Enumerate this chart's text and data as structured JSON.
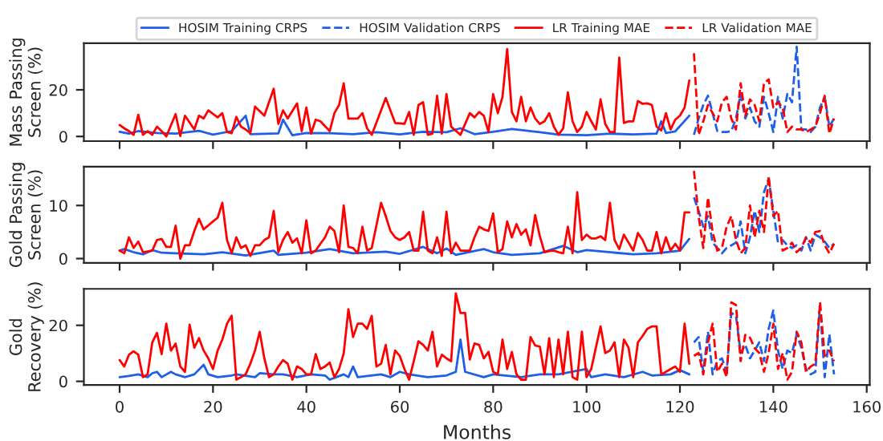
{
  "chart_data": [
    {
      "type": "line",
      "ylabel": "Mass Passing\nScreen (%)",
      "legend": "top",
      "tick_labels": "y",
      "grid": false,
      "xlim": [
        -7.65,
        160.65
      ],
      "xticks": [
        {
          "value": 0,
          "label": null
        },
        {
          "value": 20,
          "label": null
        },
        {
          "value": 40,
          "label": null
        },
        {
          "value": 60,
          "label": null
        },
        {
          "value": 80,
          "label": null
        },
        {
          "value": 100,
          "label": null
        },
        {
          "value": 120,
          "label": null
        },
        {
          "value": 140,
          "label": null
        },
        {
          "value": 160,
          "label": null
        }
      ],
      "ylim": [
        -2,
        40
      ],
      "yticks": [
        0,
        20
      ],
      "series": [
        {
          "name": "HOSIM Training CRPS",
          "color": "#1f5fe8",
          "line_style": "solid",
          "x": [
            0,
            2,
            4,
            8,
            12,
            17,
            20,
            24,
            27,
            28,
            34,
            35,
            37,
            40,
            45,
            50,
            55,
            60,
            65,
            70,
            73,
            76,
            80,
            84,
            90,
            94,
            100,
            105,
            110,
            115,
            116,
            117,
            119,
            122
          ],
          "values": [
            2,
            1.2,
            2.3,
            1.5,
            1.2,
            2.4,
            0.8,
            2.3,
            8.9,
            1,
            1.3,
            7.2,
            0.5,
            1.5,
            1.4,
            1,
            1.8,
            0.9,
            2,
            1.8,
            3.5,
            1,
            2,
            3.2,
            1.8,
            0.8,
            0.5,
            1.2,
            0.9,
            1.2,
            6.5,
            1.5,
            2.2,
            8.9
          ]
        },
        {
          "name": "HOSIM Validation CRPS",
          "color": "#1f5fe8",
          "line_style": "dashed",
          "x": [
            123,
            124,
            125,
            126,
            127,
            128,
            129,
            130,
            131,
            132,
            133,
            134,
            135,
            136,
            137,
            138,
            139,
            140,
            141,
            142,
            143,
            144,
            145,
            146,
            147,
            148,
            149,
            150,
            151,
            152,
            153
          ],
          "values": [
            0.7,
            7.7,
            13.5,
            17.5,
            10,
            2.3,
            1.9,
            1.9,
            2.3,
            7.7,
            18.2,
            7.7,
            12.4,
            6.5,
            4.2,
            17,
            10,
            1.9,
            17,
            7.7,
            18.2,
            14.7,
            38.5,
            3,
            3,
            1.9,
            4.2,
            12.4,
            17,
            4.2,
            7.7
          ]
        },
        {
          "name": "LR Training MAE",
          "color": "#ff0000",
          "line_style": "solid",
          "x": [
            0,
            1,
            2,
            3,
            4,
            5,
            6,
            7,
            8,
            9,
            10,
            12,
            13,
            14,
            16,
            17,
            18,
            19,
            21,
            22,
            23,
            24,
            25,
            26,
            27,
            28,
            29,
            31,
            33,
            34,
            35,
            36,
            38,
            39,
            40,
            41,
            42,
            43,
            45,
            46,
            47,
            48,
            49,
            51,
            52,
            53,
            54,
            57,
            59,
            61,
            62,
            63,
            64,
            65,
            66,
            67,
            68,
            69,
            70,
            71,
            73,
            74,
            75,
            76,
            77,
            78,
            79,
            80,
            81,
            82,
            83,
            84,
            85,
            86,
            87,
            88,
            89,
            90,
            91,
            92,
            93,
            94,
            95,
            96,
            97,
            98,
            99,
            100,
            101,
            102,
            103,
            104,
            105,
            106,
            107,
            108,
            109,
            110,
            111,
            112,
            113,
            114,
            115,
            116,
            117,
            118,
            119,
            120,
            121,
            122
          ],
          "values": [
            4.9,
            3.5,
            2.3,
            0.7,
            9.3,
            0.7,
            2.3,
            0.7,
            4.2,
            2.3,
            0,
            9.6,
            0.2,
            8.9,
            3,
            8.9,
            7.7,
            11.2,
            8.2,
            10,
            1.9,
            1.4,
            8.4,
            4.2,
            3,
            1.4,
            12.8,
            8.9,
            20.5,
            5.4,
            11.2,
            7.7,
            14.2,
            2.3,
            12.4,
            1.2,
            7.2,
            6.5,
            2.3,
            10,
            13.5,
            22.8,
            7.7,
            7.7,
            10,
            3.5,
            0.7,
            16.5,
            5.8,
            5.4,
            10.5,
            0.7,
            13.5,
            14.7,
            0.7,
            1.2,
            17.5,
            1.2,
            18.2,
            4.2,
            0.7,
            5.4,
            10,
            8.2,
            10.5,
            8.9,
            1.9,
            18.2,
            10,
            17,
            37.5,
            10.5,
            6.5,
            17,
            6.5,
            12.4,
            7.7,
            5.4,
            6.5,
            10,
            4.2,
            0.7,
            3.5,
            18.9,
            6.5,
            1.9,
            4.2,
            10.5,
            6.5,
            3,
            15.9,
            5.4,
            1.9,
            1.9,
            33.8,
            5.8,
            6.5,
            6.5,
            15.2,
            14,
            14.2,
            13.5,
            4.2,
            2.6,
            10,
            3,
            7.2,
            8.9,
            12.4,
            24
          ]
        },
        {
          "name": "LR Validation MAE",
          "color": "#ff0000",
          "line_style": "dashed",
          "x": [
            123,
            124,
            125,
            126,
            127,
            128,
            129,
            130,
            131,
            132,
            133,
            134,
            135,
            136,
            137,
            138,
            139,
            140,
            141,
            142,
            143,
            144,
            145,
            146,
            147,
            148,
            149,
            150,
            151,
            152,
            153
          ],
          "values": [
            35.7,
            0.7,
            6.5,
            13.5,
            10,
            6.5,
            14.7,
            17,
            7.7,
            3,
            22.8,
            8.9,
            15.9,
            13.5,
            6.5,
            22.8,
            24.5,
            12.4,
            14.7,
            12.4,
            1.9,
            4.2,
            3,
            3,
            1.9,
            3,
            4.2,
            10,
            17.5,
            1.2,
            7.7
          ]
        }
      ]
    },
    {
      "type": "line",
      "ylabel": "Gold Passing\nScreen (%)",
      "tick_labels": "y",
      "grid": false,
      "xlim": [
        -7.65,
        160.65
      ],
      "xticks": [
        {
          "value": 0,
          "label": null
        },
        {
          "value": 20,
          "label": null
        },
        {
          "value": 40,
          "label": null
        },
        {
          "value": 60,
          "label": null
        },
        {
          "value": 80,
          "label": null
        },
        {
          "value": 100,
          "label": null
        },
        {
          "value": 120,
          "label": null
        },
        {
          "value": 140,
          "label": null
        },
        {
          "value": 160,
          "label": null
        }
      ],
      "ylim": [
        -0.8,
        17.3
      ],
      "yticks": [
        0,
        10
      ],
      "series": [
        {
          "color": "#1f5fe8",
          "line_style": "solid",
          "x": [
            0,
            1,
            3,
            5,
            7,
            9,
            12,
            18,
            22,
            27,
            33,
            34,
            40,
            45,
            50,
            57,
            60,
            65,
            68,
            70,
            72,
            78,
            80,
            84,
            90,
            95,
            98,
            100,
            110,
            115,
            120,
            122
          ],
          "values": [
            1.5,
            1.8,
            1.2,
            0.8,
            1.6,
            1.1,
            1,
            0.8,
            1.2,
            0.6,
            1.5,
            0.7,
            1.1,
            1.8,
            1,
            1.3,
            0.9,
            2.2,
            1,
            1.9,
            0.7,
            1.8,
            1.2,
            0.7,
            1,
            2.4,
            1.2,
            1.6,
            0.8,
            1,
            1.5,
            3.7
          ]
        },
        {
          "color": "#1f5fe8",
          "line_style": "dashed",
          "x": [
            123,
            124,
            125,
            126,
            127,
            128,
            129,
            130,
            131,
            132,
            133,
            134,
            135,
            136,
            137,
            138,
            139,
            140,
            141,
            142,
            143,
            144,
            145,
            146,
            147,
            148,
            149,
            150,
            151,
            152,
            153
          ],
          "values": [
            11.5,
            9,
            6,
            8,
            3,
            2,
            1,
            2,
            2.5,
            3,
            7,
            1,
            4,
            9,
            5,
            12.5,
            15,
            9,
            3,
            3.5,
            2.5,
            2,
            2.5,
            1.5,
            4,
            1.5,
            4.5,
            4,
            3.2,
            2,
            2.8
          ]
        },
        {
          "color": "#ff0000",
          "line_style": "solid",
          "x": [
            0,
            1,
            2,
            3,
            4,
            5,
            7,
            8,
            9,
            10,
            11,
            12,
            13,
            14,
            15,
            16,
            17,
            18,
            20,
            21,
            22,
            23,
            24,
            25,
            26,
            27,
            28,
            29,
            30,
            31,
            32,
            33,
            34,
            35,
            36,
            37,
            38,
            39,
            40,
            41,
            42,
            43,
            44,
            45,
            46,
            47,
            48,
            49,
            50,
            51,
            52,
            53,
            54,
            56,
            57,
            58,
            59,
            60,
            61,
            62,
            63,
            64,
            65,
            66,
            67,
            68,
            69,
            70,
            71,
            72,
            73,
            74,
            75,
            76,
            77,
            78,
            79,
            80,
            81,
            82,
            83,
            84,
            85,
            86,
            87,
            88,
            89,
            90,
            91,
            92,
            93,
            94,
            95,
            96,
            97,
            98,
            99,
            100,
            101,
            102,
            103,
            104,
            105,
            106,
            107,
            108,
            109,
            110,
            111,
            112,
            113,
            114,
            115,
            116,
            117,
            118,
            119,
            120,
            121,
            122
          ],
          "values": [
            1.5,
            1,
            4,
            2,
            3.2,
            1.2,
            1.5,
            3.5,
            3.7,
            2.2,
            2.2,
            6.2,
            0,
            2.5,
            2.5,
            5.2,
            7.5,
            5.5,
            7,
            7.7,
            10.5,
            3.5,
            1,
            4,
            2,
            2.5,
            0.5,
            2.5,
            2.5,
            3.5,
            4,
            9,
            1.2,
            3.5,
            5,
            3,
            3.8,
            1,
            7.2,
            1,
            1.5,
            2.8,
            4,
            6,
            5.2,
            1.2,
            10,
            2.2,
            2,
            1,
            6,
            1.5,
            2,
            10.5,
            8,
            5.2,
            4,
            3.5,
            4,
            5,
            1.5,
            1.5,
            8.8,
            1.5,
            1,
            4,
            0.5,
            8.8,
            1,
            3,
            1.5,
            1.5,
            1.5,
            4,
            6,
            5.5,
            5.2,
            8.5,
            1.2,
            1.8,
            7,
            4,
            6.5,
            4.5,
            5.5,
            2.5,
            8.2,
            4.2,
            1.2,
            1.4,
            1.5,
            1.2,
            1,
            6,
            1,
            12.5,
            3.5,
            4.5,
            3.8,
            3.8,
            4.2,
            3.5,
            10.5,
            3.5,
            1.8,
            4.5,
            3,
            1.5,
            4.8,
            3.5,
            1.5,
            1.5,
            5,
            1,
            4,
            1.5,
            2.8,
            1.5,
            8.7,
            8.7
          ]
        },
        {
          "color": "#ff0000",
          "line_style": "dashed",
          "x": [
            123,
            124,
            125,
            126,
            127,
            128,
            129,
            130,
            131,
            132,
            133,
            134,
            135,
            136,
            137,
            138,
            139,
            140,
            141,
            142,
            143,
            144,
            145,
            146,
            147,
            148,
            149,
            150,
            151,
            152,
            153
          ],
          "values": [
            16.5,
            8,
            2,
            11.5,
            5,
            1.5,
            2,
            6,
            8,
            3.5,
            1,
            2,
            10,
            4,
            9,
            5,
            15.5,
            8,
            9,
            1.5,
            2,
            3,
            1.2,
            2,
            4,
            3,
            5,
            5.2,
            2.5,
            1,
            2.8
          ]
        }
      ]
    },
    {
      "type": "line",
      "ylabel": "Gold\nRecovery (%)",
      "xlabel": "Months",
      "grid": false,
      "xlim": [
        -7.65,
        160.65
      ],
      "xticks": [
        0,
        20,
        40,
        60,
        80,
        100,
        120,
        140,
        160
      ],
      "ylim": [
        -1.3,
        33
      ],
      "yticks": [
        0,
        20
      ],
      "series": [
        {
          "color": "#1f5fe8",
          "line_style": "solid",
          "x": [
            0,
            2,
            4,
            6,
            7,
            8,
            9,
            11,
            12,
            14,
            16,
            18,
            19,
            21,
            24,
            25,
            29,
            30,
            33,
            35,
            38,
            41,
            44,
            45,
            48,
            49,
            50,
            51,
            56,
            58,
            60,
            62,
            66,
            70,
            72,
            73,
            74,
            78,
            80,
            86,
            90,
            94,
            100,
            101,
            104,
            108,
            112,
            114,
            118,
            120,
            122
          ],
          "values": [
            1.5,
            1.9,
            2.5,
            1.5,
            2.9,
            3.4,
            1.5,
            3.4,
            2.5,
            1.5,
            2.5,
            5.9,
            2.5,
            1.5,
            2.1,
            2.5,
            1.5,
            2.9,
            2.5,
            2.5,
            1.5,
            2.5,
            2.1,
            0.6,
            2.5,
            1.5,
            5.3,
            1.5,
            2.5,
            1.5,
            3.4,
            2.5,
            1.5,
            2.1,
            3.4,
            14.9,
            3.4,
            1.5,
            2.5,
            1.5,
            2.5,
            2.5,
            4.4,
            1.5,
            2.5,
            1.5,
            3.4,
            2.1,
            2.5,
            4,
            2.5
          ]
        },
        {
          "color": "#1f5fe8",
          "line_style": "dashed",
          "x": [
            123,
            124,
            125,
            126,
            127,
            128,
            129,
            130,
            131,
            132,
            133,
            134,
            135,
            136,
            137,
            138,
            139,
            140,
            141,
            142,
            143,
            144,
            145,
            146,
            147,
            148,
            149,
            150,
            151,
            152,
            153
          ],
          "values": [
            13.9,
            15.8,
            3.4,
            17.7,
            2.5,
            7.2,
            8.2,
            3.4,
            24.4,
            23.4,
            10.1,
            13,
            8.2,
            11,
            13.9,
            7.2,
            18.7,
            25.3,
            11,
            4.4,
            11,
            10.1,
            16.8,
            12,
            4.4,
            2.5,
            3.4,
            27.2,
            1.5,
            16.8,
            2.5
          ]
        },
        {
          "color": "#ff0000",
          "line_style": "solid",
          "x": [
            0,
            1,
            2,
            3,
            4,
            5,
            6,
            7,
            8,
            9,
            10,
            11,
            12,
            13,
            14,
            15,
            16,
            17,
            18,
            19,
            20,
            21,
            22,
            23,
            24,
            25,
            26,
            27,
            28,
            29,
            30,
            31,
            32,
            33,
            34,
            35,
            36,
            37,
            38,
            39,
            40,
            41,
            42,
            43,
            44,
            45,
            46,
            47,
            48,
            49,
            50,
            51,
            52,
            53,
            54,
            55,
            56,
            57,
            58,
            59,
            60,
            61,
            62,
            63,
            64,
            65,
            66,
            67,
            68,
            69,
            70,
            71,
            72,
            73,
            74,
            75,
            76,
            77,
            78,
            79,
            80,
            81,
            82,
            83,
            84,
            85,
            86,
            87,
            88,
            89,
            90,
            91,
            92,
            93,
            94,
            95,
            96,
            97,
            98,
            99,
            100,
            101,
            102,
            103,
            104,
            105,
            106,
            107,
            108,
            109,
            110,
            111,
            112,
            113,
            114,
            115,
            116,
            117,
            118,
            119,
            120,
            121,
            122
          ],
          "values": [
            7.6,
            5.3,
            9.5,
            10.7,
            9.5,
            1.5,
            2.5,
            13.9,
            17.3,
            9.7,
            20.6,
            11,
            13.5,
            5.3,
            3.4,
            20.2,
            12,
            15.4,
            11,
            8.2,
            4.4,
            11,
            14.9,
            20.6,
            23.4,
            0.6,
            1.5,
            2.5,
            6.3,
            11,
            17.7,
            8.2,
            1.5,
            2.5,
            5.3,
            7.6,
            6.3,
            0.6,
            5.3,
            4.4,
            2.5,
            2.5,
            9.7,
            4.4,
            5.3,
            6.7,
            1.5,
            4.4,
            10,
            25.7,
            15.8,
            20.6,
            20.6,
            18.7,
            23.4,
            5.3,
            6.3,
            13,
            2.5,
            11,
            9.1,
            4.4,
            0.6,
            7.2,
            14.3,
            13,
            11,
            17.7,
            5.3,
            9.5,
            8.2,
            7.2,
            31.4,
            24.4,
            24.4,
            7.8,
            13.5,
            13,
            8.2,
            10.5,
            3.4,
            2.5,
            14.9,
            4.4,
            10.5,
            2.5,
            0.6,
            0.6,
            15.8,
            12.8,
            12.4,
            2.5,
            15.4,
            1.5,
            14.9,
            2.5,
            17.7,
            1.5,
            0.6,
            17.7,
            1.5,
            4.4,
            12,
            19.6,
            10.1,
            11,
            13.9,
            1.5,
            14.9,
            12,
            1.5,
            13.9,
            16.2,
            18.7,
            19.6,
            19.6,
            2.5,
            3.4,
            4.4,
            5.3,
            3.4,
            20.6,
            6.3
          ]
        },
        {
          "color": "#ff0000",
          "line_style": "dashed",
          "x": [
            123,
            124,
            125,
            126,
            127,
            128,
            129,
            130,
            131,
            132,
            133,
            134,
            135,
            136,
            137,
            138,
            139,
            140,
            141,
            142,
            143,
            144,
            145,
            146,
            147,
            148,
            149,
            150,
            151,
            152,
            153
          ],
          "values": [
            9.1,
            10.1,
            2.5,
            13.9,
            20.6,
            3.4,
            6.3,
            1.5,
            28.2,
            27.2,
            7.2,
            16.6,
            15.6,
            11.8,
            10.1,
            3.4,
            10.1,
            20.6,
            4.4,
            10.1,
            0.6,
            3.4,
            17.7,
            13.9,
            3.4,
            5.3,
            6.3,
            28.2,
            9.1,
            11,
            7.2
          ]
        }
      ]
    }
  ]
}
